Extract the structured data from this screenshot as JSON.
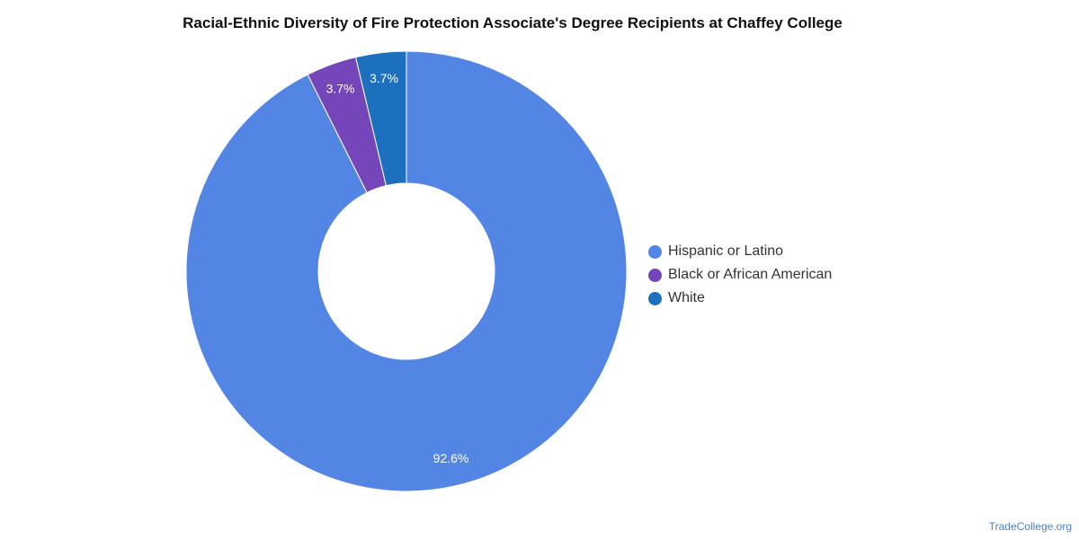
{
  "chart_data": {
    "type": "pie",
    "variant": "donut",
    "title": "Racial-Ethnic Diversity of Fire Protection Associate's Degree Recipients at Chaffey College",
    "slices": [
      {
        "name": "Hispanic or Latino",
        "value": 92.6,
        "label": "92.6%",
        "color": "#5386e4"
      },
      {
        "name": "Black or African American",
        "value": 3.7,
        "label": "3.7%",
        "color": "#7446b9"
      },
      {
        "name": "White",
        "value": 3.7,
        "label": "3.7%",
        "color": "#1c70bd"
      }
    ],
    "legend_position": "right"
  },
  "watermark": "TradeCollege.org"
}
